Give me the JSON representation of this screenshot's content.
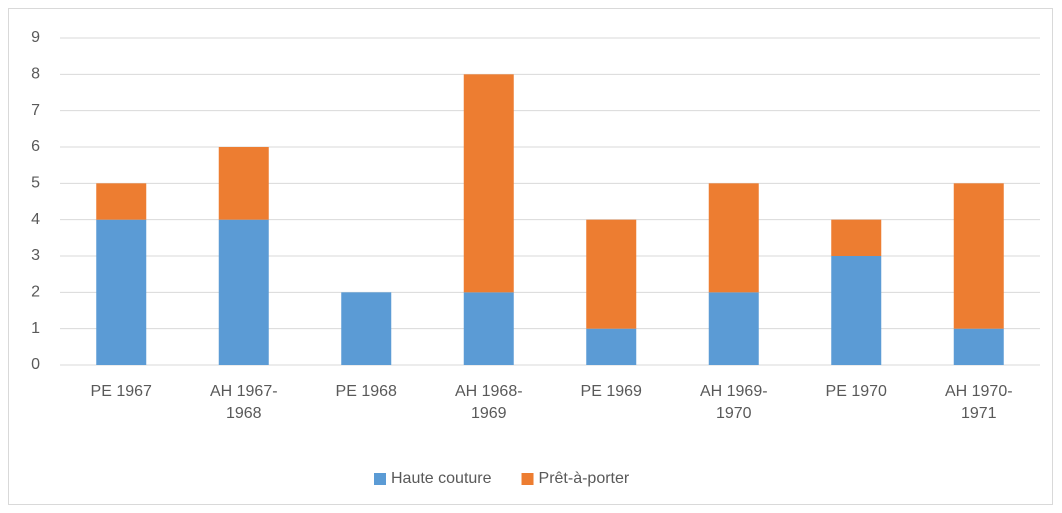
{
  "chart_data": {
    "type": "bar",
    "stacked": true,
    "categories": [
      "PE 1967",
      "AH 1967-1968",
      "PE 1968",
      "AH 1968-1969",
      "PE 1969",
      "AH 1969-1970",
      "PE 1970",
      "AH 1970-1971"
    ],
    "series": [
      {
        "name": "Haute couture",
        "color": "#5b9bd5",
        "values": [
          4,
          4,
          2,
          2,
          1,
          2,
          3,
          1
        ]
      },
      {
        "name": "Prêt-à-porter",
        "color": "#ed7d31",
        "values": [
          1,
          2,
          0,
          6,
          3,
          3,
          1,
          4
        ]
      }
    ],
    "ylim": [
      0,
      9
    ],
    "yticks": [
      0,
      1,
      2,
      3,
      4,
      5,
      6,
      7,
      8,
      9
    ],
    "grid": true,
    "legend": "bottom"
  }
}
